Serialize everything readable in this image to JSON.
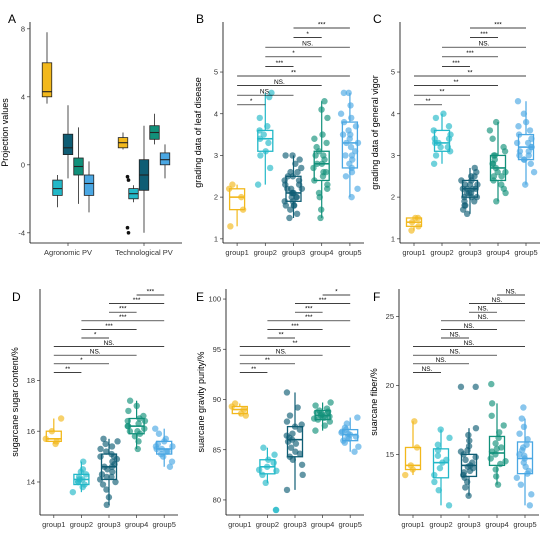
{
  "colors": {
    "group1": "#f2b81c",
    "group2": "#22b8c8",
    "group3": "#0f5d74",
    "group4": "#11907a",
    "group5": "#4aa7e3"
  },
  "chart_data": [
    {
      "panel": "A",
      "type": "box",
      "ylabel": "Projection values",
      "ylim": [
        -4.6,
        8.4
      ],
      "yticks": [
        -4,
        0,
        4,
        8
      ],
      "categories": [
        "Agronomic PV",
        "Technological PV"
      ],
      "series": [
        {
          "group": "group1",
          "boxes": [
            {
              "min": 3.6,
              "q1": 4.0,
              "med": 4.3,
              "q3": 6.0,
              "max": 7.8,
              "outliers": []
            },
            {
              "min": 0.9,
              "q1": 1.0,
              "med": 1.3,
              "q3": 1.6,
              "max": 1.9,
              "outliers": []
            }
          ]
        },
        {
          "group": "group2",
          "boxes": [
            {
              "min": -2.5,
              "q1": -1.8,
              "med": -1.4,
              "q3": -0.9,
              "max": -0.6,
              "outliers": []
            },
            {
              "min": -2.2,
              "q1": -2.0,
              "med": -1.7,
              "q3": -1.4,
              "max": -1.2,
              "outliers": [
                -0.7,
                -0.9,
                -3.7,
                -4.0
              ]
            }
          ]
        },
        {
          "group": "group3",
          "boxes": [
            {
              "min": -0.8,
              "q1": 0.6,
              "med": 1.0,
              "q3": 1.8,
              "max": 3.5,
              "outliers": []
            },
            {
              "min": -4.0,
              "q1": -1.5,
              "med": -0.6,
              "q3": 0.3,
              "max": 2.3,
              "outliers": []
            }
          ]
        },
        {
          "group": "group4",
          "boxes": [
            {
              "min": -2.3,
              "q1": -0.6,
              "med": -0.1,
              "q3": 0.4,
              "max": 2.2,
              "outliers": []
            },
            {
              "min": 1.2,
              "q1": 1.5,
              "med": 1.9,
              "q3": 2.3,
              "max": 3.0,
              "outliers": []
            }
          ]
        },
        {
          "group": "group5",
          "boxes": [
            {
              "min": -2.8,
              "q1": -1.8,
              "med": -1.1,
              "q3": -0.6,
              "max": 0.2,
              "outliers": []
            },
            {
              "min": -0.8,
              "q1": 0.0,
              "med": 0.3,
              "q3": 0.7,
              "max": 1.2,
              "outliers": []
            }
          ]
        }
      ]
    },
    {
      "panel": "B",
      "type": "box-jitter",
      "ylabel": "grading data of leaf disease",
      "ylim": [
        0.9,
        6.2
      ],
      "yticks": [
        1,
        2,
        3,
        4,
        5
      ],
      "categories": [
        "group1",
        "group2",
        "group3",
        "group4",
        "group5"
      ],
      "boxes": [
        {
          "min": 1.3,
          "q1": 1.7,
          "med": 2.0,
          "q3": 2.2,
          "max": 2.3
        },
        {
          "min": 2.3,
          "q1": 3.1,
          "med": 3.4,
          "q3": 3.6,
          "max": 4.5
        },
        {
          "min": 1.5,
          "q1": 1.9,
          "med": 2.1,
          "q3": 2.5,
          "max": 3.0
        },
        {
          "min": 1.5,
          "q1": 2.4,
          "med": 2.8,
          "q3": 3.1,
          "max": 4.3
        },
        {
          "min": 2.0,
          "q1": 2.7,
          "med": 3.3,
          "q3": 3.8,
          "max": 4.5
        }
      ],
      "points": [
        [
          1.3,
          1.7,
          2.0,
          2.2,
          2.3
        ],
        [
          2.3,
          2.7,
          3.0,
          3.1,
          3.3,
          3.4,
          3.5,
          3.6,
          3.7,
          3.9,
          4.4,
          4.5
        ],
        [
          1.5,
          1.6,
          1.7,
          1.8,
          1.8,
          1.9,
          1.9,
          2.0,
          2.0,
          2.1,
          2.1,
          2.1,
          2.2,
          2.2,
          2.3,
          2.3,
          2.4,
          2.4,
          2.5,
          2.5,
          2.6,
          2.6,
          2.7,
          2.8,
          2.9,
          3.0,
          3.0,
          2.0,
          2.2,
          1.8
        ],
        [
          1.5,
          1.7,
          2.0,
          2.1,
          2.3,
          2.4,
          2.5,
          2.6,
          2.7,
          2.8,
          2.8,
          2.9,
          3.0,
          3.0,
          3.1,
          3.2,
          3.3,
          3.5,
          3.9,
          4.1,
          4.3,
          2.2,
          2.6,
          3.4
        ],
        [
          2.0,
          2.2,
          2.5,
          2.7,
          2.8,
          2.9,
          3.0,
          3.1,
          3.2,
          3.3,
          3.3,
          3.4,
          3.5,
          3.6,
          3.7,
          3.8,
          3.9,
          4.0,
          4.2,
          4.5,
          4.5,
          2.6,
          3.0,
          3.5
        ]
      ],
      "comparisons": [
        {
          "from": 1,
          "to": 2,
          "label": "*"
        },
        {
          "from": 1,
          "to": 3,
          "label": "NS."
        },
        {
          "from": 1,
          "to": 4,
          "label": "NS."
        },
        {
          "from": 1,
          "to": 5,
          "label": "**"
        },
        {
          "from": 2,
          "to": 3,
          "label": "***"
        },
        {
          "from": 2,
          "to": 4,
          "label": "*"
        },
        {
          "from": 2,
          "to": 5,
          "label": "NS."
        },
        {
          "from": 3,
          "to": 4,
          "label": "*"
        },
        {
          "from": 3,
          "to": 5,
          "label": "***"
        }
      ]
    },
    {
      "panel": "C",
      "type": "box-jitter",
      "ylabel": "grading data of general vigor",
      "ylim": [
        0.9,
        6.2
      ],
      "yticks": [
        1,
        2,
        3,
        4,
        5
      ],
      "categories": [
        "group1",
        "group2",
        "group3",
        "group4",
        "group5"
      ],
      "boxes": [
        {
          "min": 1.2,
          "q1": 1.3,
          "med": 1.4,
          "q3": 1.5,
          "max": 1.5
        },
        {
          "min": 2.8,
          "q1": 3.1,
          "med": 3.3,
          "q3": 3.6,
          "max": 4.0
        },
        {
          "min": 1.6,
          "q1": 2.0,
          "med": 2.2,
          "q3": 2.4,
          "max": 2.7
        },
        {
          "min": 1.9,
          "q1": 2.4,
          "med": 2.7,
          "q3": 3.0,
          "max": 3.8
        },
        {
          "min": 2.3,
          "q1": 2.9,
          "med": 3.2,
          "q3": 3.5,
          "max": 4.3
        }
      ],
      "points": [
        [
          1.2,
          1.3,
          1.4,
          1.5,
          1.5
        ],
        [
          2.8,
          3.0,
          3.1,
          3.2,
          3.3,
          3.3,
          3.4,
          3.5,
          3.6,
          3.7,
          3.9,
          4.0,
          3.2,
          3.4
        ],
        [
          1.6,
          1.7,
          1.8,
          1.9,
          1.9,
          2.0,
          2.0,
          2.1,
          2.1,
          2.2,
          2.2,
          2.2,
          2.3,
          2.3,
          2.4,
          2.4,
          2.5,
          2.5,
          2.6,
          2.7,
          2.0,
          2.2,
          1.8,
          2.3,
          2.1
        ],
        [
          1.9,
          2.1,
          2.2,
          2.3,
          2.4,
          2.5,
          2.6,
          2.6,
          2.7,
          2.8,
          2.9,
          3.0,
          3.0,
          3.1,
          3.2,
          3.4,
          3.6,
          3.8,
          2.5,
          2.8
        ],
        [
          2.3,
          2.6,
          2.8,
          2.9,
          3.0,
          3.1,
          3.1,
          3.2,
          3.2,
          3.3,
          3.4,
          3.5,
          3.6,
          3.7,
          3.8,
          4.0,
          4.3,
          2.9,
          3.3,
          3.0
        ]
      ],
      "comparisons": [
        {
          "from": 1,
          "to": 2,
          "label": "**"
        },
        {
          "from": 1,
          "to": 3,
          "label": "**"
        },
        {
          "from": 1,
          "to": 4,
          "label": "**"
        },
        {
          "from": 1,
          "to": 5,
          "label": "**"
        },
        {
          "from": 2,
          "to": 3,
          "label": "***"
        },
        {
          "from": 2,
          "to": 4,
          "label": "***"
        },
        {
          "from": 2,
          "to": 5,
          "label": "NS."
        },
        {
          "from": 3,
          "to": 4,
          "label": "***"
        },
        {
          "from": 3,
          "to": 5,
          "label": "***"
        }
      ]
    },
    {
      "panel": "D",
      "type": "box-jitter",
      "ylabel": "sugarcane sugar content/%",
      "ylim": [
        12.7,
        21.6
      ],
      "yticks": [
        14,
        16,
        18
      ],
      "categories": [
        "group1",
        "group2",
        "group3",
        "group4",
        "group5"
      ],
      "boxes": [
        {
          "min": 15.5,
          "q1": 15.6,
          "med": 15.7,
          "q3": 16.0,
          "max": 16.5
        },
        {
          "min": 13.6,
          "q1": 13.9,
          "med": 14.1,
          "q3": 14.3,
          "max": 14.8
        },
        {
          "min": 13.1,
          "q1": 14.1,
          "med": 14.6,
          "q3": 15.1,
          "max": 15.7
        },
        {
          "min": 15.3,
          "q1": 15.9,
          "med": 16.2,
          "q3": 16.5,
          "max": 17.2
        },
        {
          "min": 14.6,
          "q1": 15.1,
          "med": 15.3,
          "q3": 15.6,
          "max": 16.1
        }
      ],
      "points": [
        [
          15.5,
          15.6,
          15.7,
          16.0,
          16.5
        ],
        [
          13.6,
          13.8,
          13.9,
          14.0,
          14.1,
          14.1,
          14.2,
          14.3,
          14.4,
          14.5,
          14.8,
          14.0
        ],
        [
          13.1,
          13.4,
          13.7,
          13.9,
          14.0,
          14.1,
          14.2,
          14.3,
          14.4,
          14.5,
          14.6,
          14.7,
          14.8,
          14.9,
          15.0,
          15.1,
          15.2,
          15.3,
          15.4,
          15.5,
          15.6,
          15.7,
          14.6,
          15.0,
          14.2
        ],
        [
          15.3,
          15.6,
          15.8,
          15.9,
          16.0,
          16.1,
          16.2,
          16.2,
          16.3,
          16.4,
          16.5,
          16.6,
          16.8,
          17.0,
          17.2,
          16.0,
          16.4
        ],
        [
          14.6,
          14.8,
          15.0,
          15.1,
          15.2,
          15.3,
          15.3,
          15.4,
          15.5,
          15.6,
          15.7,
          15.9,
          16.1,
          15.2,
          15.4
        ]
      ],
      "comparisons": [
        {
          "from": 1,
          "to": 2,
          "label": "**"
        },
        {
          "from": 1,
          "to": 3,
          "label": "*"
        },
        {
          "from": 1,
          "to": 4,
          "label": "NS."
        },
        {
          "from": 1,
          "to": 5,
          "label": "NS."
        },
        {
          "from": 2,
          "to": 3,
          "label": "*"
        },
        {
          "from": 2,
          "to": 4,
          "label": "***"
        },
        {
          "from": 2,
          "to": 5,
          "label": "***"
        },
        {
          "from": 3,
          "to": 4,
          "label": "***"
        },
        {
          "from": 3,
          "to": 5,
          "label": "***"
        },
        {
          "from": 4,
          "to": 5,
          "label": "***"
        }
      ]
    },
    {
      "panel": "E",
      "type": "box-jitter",
      "ylabel": "suarcane gravity purity/%",
      "ylim": [
        78.5,
        101.0
      ],
      "yticks": [
        80,
        85,
        90,
        95,
        100
      ],
      "categories": [
        "group1",
        "group2",
        "group3",
        "group4",
        "group5"
      ],
      "boxes": [
        {
          "min": 88.4,
          "q1": 88.6,
          "med": 89.0,
          "q3": 89.3,
          "max": 89.6
        },
        {
          "min": 81.7,
          "q1": 82.6,
          "med": 83.3,
          "q3": 84.0,
          "max": 85.2
        },
        {
          "min": 81.0,
          "q1": 84.3,
          "med": 86.0,
          "q3": 87.3,
          "max": 90.7
        },
        {
          "min": 86.9,
          "q1": 88.0,
          "med": 88.4,
          "q3": 88.9,
          "max": 89.7
        },
        {
          "min": 84.8,
          "q1": 85.9,
          "med": 86.5,
          "q3": 87.0,
          "max": 88.2
        }
      ],
      "points": [
        [
          88.4,
          88.6,
          89.0,
          89.3,
          89.6
        ],
        [
          79.0,
          79.0,
          81.7,
          82.5,
          82.9,
          83.3,
          83.7,
          84.0,
          84.5,
          85.2,
          83.0
        ],
        [
          81.0,
          82.5,
          83.5,
          84.0,
          84.3,
          84.8,
          85.2,
          85.6,
          86.0,
          86.2,
          86.6,
          87.0,
          87.3,
          87.8,
          88.4,
          89.2,
          90.7,
          85.8,
          86.4,
          84.6,
          87.5
        ],
        [
          86.9,
          87.4,
          87.8,
          88.0,
          88.1,
          88.2,
          88.3,
          88.4,
          88.5,
          88.6,
          88.7,
          88.8,
          88.9,
          89.1,
          89.4,
          89.7,
          88.2,
          88.6
        ],
        [
          84.8,
          85.3,
          85.7,
          85.9,
          86.1,
          86.3,
          86.5,
          86.6,
          86.8,
          87.0,
          87.2,
          87.6,
          88.2,
          86.2,
          86.7
        ]
      ],
      "comparisons": [
        {
          "from": 1,
          "to": 2,
          "label": "**"
        },
        {
          "from": 1,
          "to": 3,
          "label": "**"
        },
        {
          "from": 1,
          "to": 4,
          "label": "NS."
        },
        {
          "from": 1,
          "to": 5,
          "label": "**"
        },
        {
          "from": 2,
          "to": 3,
          "label": "**"
        },
        {
          "from": 2,
          "to": 4,
          "label": "***"
        },
        {
          "from": 2,
          "to": 5,
          "label": "***"
        },
        {
          "from": 3,
          "to": 4,
          "label": "***"
        },
        {
          "from": 3,
          "to": 5,
          "label": "***"
        },
        {
          "from": 4,
          "to": 5,
          "label": "*"
        }
      ]
    },
    {
      "panel": "F",
      "type": "box-jitter",
      "ylabel": "suarcane fiber/%",
      "ylim": [
        10.6,
        27.0
      ],
      "yticks": [
        15,
        20,
        25
      ],
      "categories": [
        "group1",
        "group2",
        "group3",
        "group4",
        "group5"
      ],
      "boxes": [
        {
          "min": 13.5,
          "q1": 13.9,
          "med": 14.2,
          "q3": 15.5,
          "max": 17.4
        },
        {
          "min": 11.3,
          "q1": 13.3,
          "med": 14.4,
          "q3": 15.4,
          "max": 16.8
        },
        {
          "min": 12.0,
          "q1": 13.4,
          "med": 14.2,
          "q3": 15.0,
          "max": 16.9
        },
        {
          "min": 12.8,
          "q1": 14.2,
          "med": 15.1,
          "q3": 16.3,
          "max": 18.7
        },
        {
          "min": 11.3,
          "q1": 13.6,
          "med": 14.7,
          "q3": 15.9,
          "max": 17.6
        }
      ],
      "points": [
        [
          13.5,
          13.9,
          14.2,
          15.5,
          17.4
        ],
        [
          11.3,
          12.4,
          13.0,
          13.5,
          14.0,
          14.4,
          14.9,
          15.3,
          15.7,
          16.2,
          16.8,
          14.6
        ],
        [
          12.0,
          12.6,
          13.0,
          13.3,
          13.5,
          13.8,
          14.0,
          14.2,
          14.4,
          14.6,
          14.8,
          15.0,
          15.3,
          15.6,
          16.0,
          16.4,
          16.9,
          19.9,
          19.9,
          14.1,
          13.7,
          15.2
        ],
        [
          12.8,
          13.4,
          13.9,
          14.3,
          14.7,
          15.0,
          15.2,
          15.5,
          15.8,
          16.2,
          16.6,
          17.1,
          17.8,
          18.7,
          20.1,
          15.4,
          14.5
        ],
        [
          11.3,
          12.1,
          12.8,
          13.3,
          13.8,
          14.1,
          14.4,
          14.7,
          15.0,
          15.3,
          15.7,
          16.1,
          16.5,
          17.0,
          17.6,
          18.4,
          14.9,
          13.6,
          15.5
        ]
      ],
      "comparisons": [
        {
          "from": 1,
          "to": 2,
          "label": "NS."
        },
        {
          "from": 1,
          "to": 3,
          "label": "NS."
        },
        {
          "from": 1,
          "to": 4,
          "label": "NS."
        },
        {
          "from": 1,
          "to": 5,
          "label": "NS."
        },
        {
          "from": 2,
          "to": 3,
          "label": "NS."
        },
        {
          "from": 2,
          "to": 4,
          "label": "NS."
        },
        {
          "from": 2,
          "to": 5,
          "label": "NS."
        },
        {
          "from": 3,
          "to": 4,
          "label": "NS."
        },
        {
          "from": 3,
          "to": 5,
          "label": "NS."
        },
        {
          "from": 4,
          "to": 5,
          "label": "NS."
        }
      ]
    }
  ]
}
